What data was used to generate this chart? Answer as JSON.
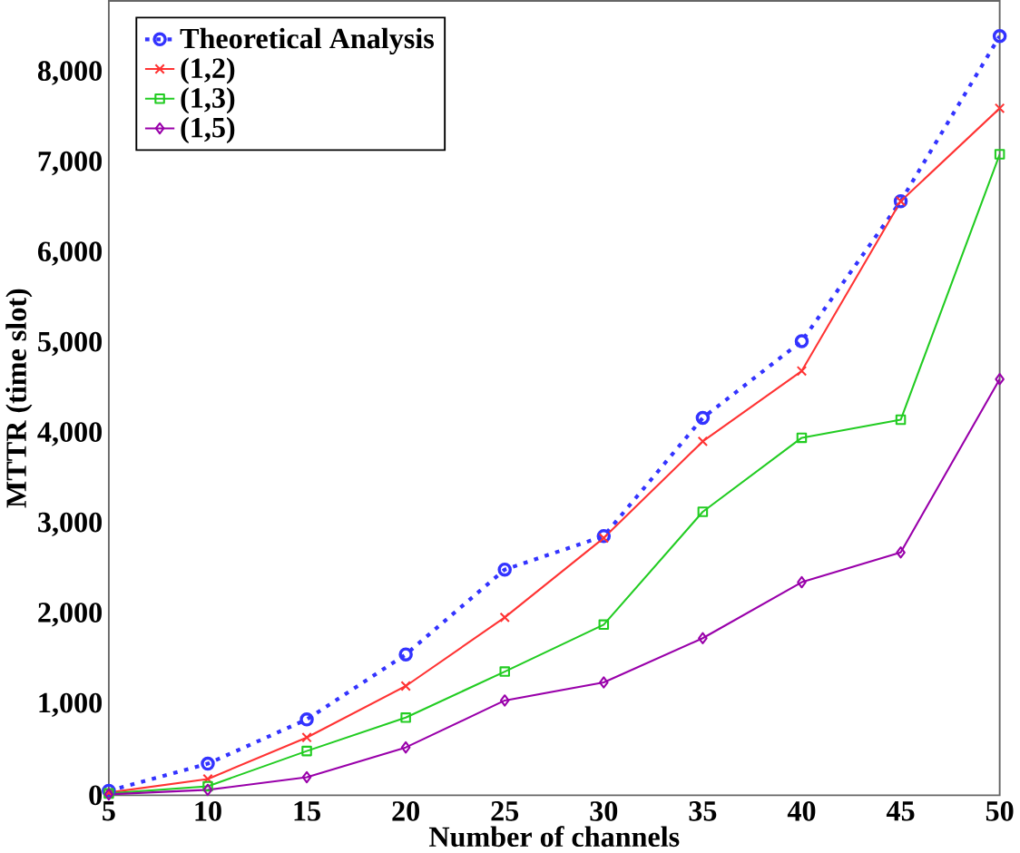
{
  "chart_data": {
    "type": "line",
    "xlabel": "Number of channels",
    "ylabel": "MTTR (time slot)",
    "x": [
      5,
      10,
      15,
      20,
      25,
      30,
      35,
      40,
      45,
      50
    ],
    "series": [
      {
        "name": "Theoretical Analysis",
        "color": "#3333ff",
        "marker": "circle",
        "line_style": "dotted",
        "values": [
          50,
          350,
          840,
          1560,
          2500,
          2870,
          4180,
          5030,
          6580,
          8410
        ]
      },
      {
        "name": "(1,2)",
        "color": "#ff3333",
        "marker": "cross",
        "line_style": "solid",
        "values": [
          30,
          180,
          640,
          1210,
          1970,
          2850,
          3920,
          4700,
          6580,
          7610
        ]
      },
      {
        "name": "(1,3)",
        "color": "#22cc22",
        "marker": "square",
        "line_style": "solid",
        "values": [
          20,
          100,
          490,
          860,
          1370,
          1890,
          3140,
          3960,
          4160,
          7100
        ]
      },
      {
        "name": "(1,5)",
        "color": "#9900aa",
        "marker": "diamond",
        "line_style": "solid",
        "values": [
          10,
          60,
          200,
          530,
          1050,
          1250,
          1740,
          2360,
          2690,
          4610
        ]
      }
    ],
    "xlim": [
      5,
      50
    ],
    "ylim": [
      0,
      8800
    ],
    "xticks": [
      5,
      10,
      15,
      20,
      25,
      30,
      35,
      40,
      45,
      50
    ],
    "yticks": [
      0,
      {
        "value": 1000,
        "label": "1,000"
      },
      {
        "value": 2000,
        "label": "2,000"
      },
      {
        "value": 3000,
        "label": "3,000"
      },
      {
        "value": 4000,
        "label": "4,000"
      },
      {
        "value": 5000,
        "label": "5,000"
      },
      {
        "value": 6000,
        "label": "6,000"
      },
      {
        "value": 7000,
        "label": "7,000"
      },
      {
        "value": 8000,
        "label": "8,000"
      }
    ],
    "grid": false,
    "legend": "top left"
  }
}
